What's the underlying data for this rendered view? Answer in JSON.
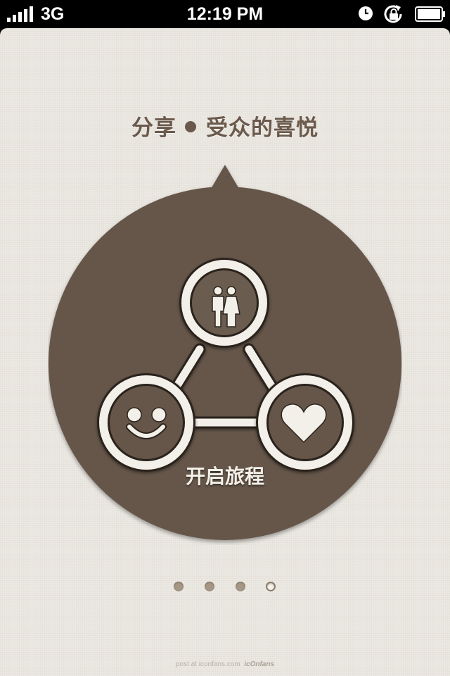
{
  "status_bar": {
    "carrier": "3G",
    "time": "12:19 PM",
    "signal_icon": "signal-bars-icon",
    "alarm_icon": "alarm-clock-icon",
    "rotation_lock_icon": "rotation-lock-icon",
    "battery_icon": "battery-icon"
  },
  "title": {
    "left": "分享",
    "right": "受众的喜悦"
  },
  "diagram": {
    "top_icon": "couple-icon",
    "left_icon": "smiley-face-icon",
    "right_icon": "heart-icon"
  },
  "start_button": {
    "label": "开启旅程"
  },
  "pagination": {
    "total": 4,
    "current": 4
  },
  "watermark": {
    "post_at": "post at iconfans.com",
    "brand": "icOnfans"
  },
  "colors": {
    "background": "#ece8e2",
    "bubble": "#65574a",
    "title": "#6b5a4c",
    "icon_fill": "#f3efe9"
  }
}
